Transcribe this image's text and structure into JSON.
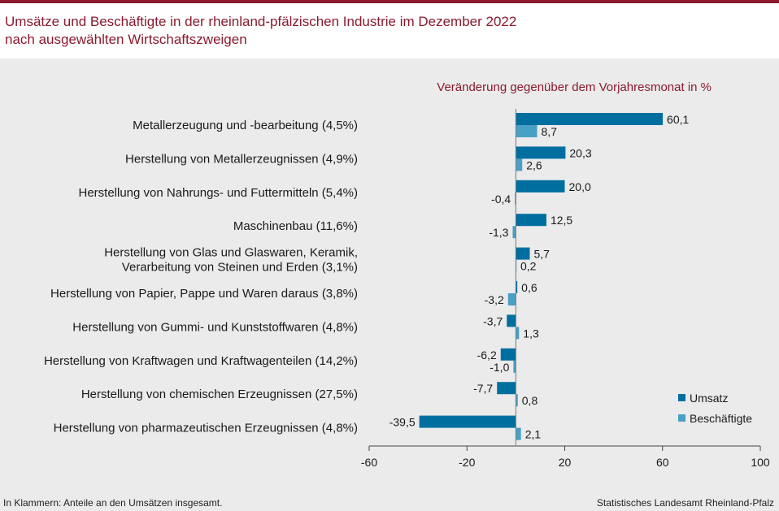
{
  "title": {
    "line1": "Umsätze und Beschäftigte in der rheinland-pfälzischen Industrie im Dezember 2022",
    "line2": "nach ausgewählten Wirtschaftszweigen"
  },
  "footnote": "In Klammern: Anteile an den Umsätzen insgesamt.",
  "source": "Statistisches Landesamt Rheinland-Pfalz",
  "colors": {
    "umsatz": "#006fa0",
    "beschaeftigte": "#4a9fc5",
    "title": "#8b1a2e"
  },
  "chart_data": {
    "type": "bar",
    "orientation": "horizontal",
    "subtitle": "Veränderung gegenüber dem Vorjahresmonat in %",
    "categories": [
      [
        "Metallerzeugung und -bearbeitung (4,5%)"
      ],
      [
        "Herstellung von Metallerzeugnissen (4,9%)"
      ],
      [
        "Herstellung von Nahrungs- und Futtermitteln (5,4%)"
      ],
      [
        "Maschinenbau (11,6%)"
      ],
      [
        "Herstellung von Glas und Glaswaren, Keramik,",
        "Verarbeitung von Steinen und Erden (3,1%)"
      ],
      [
        "Herstellung von Papier, Pappe und Waren daraus (3,8%)"
      ],
      [
        "Herstellung von Gummi- und Kunststoffwaren (4,8%)"
      ],
      [
        "Herstellung von Kraftwagen und Kraftwagenteilen (14,2%)"
      ],
      [
        "Herstellung von chemischen Erzeugnissen (27,5%)"
      ],
      [
        "Herstellung von pharmazeutischen Erzeugnissen (4,8%)"
      ]
    ],
    "series": [
      {
        "name": "Umsatz",
        "values": [
          60.1,
          20.3,
          20.0,
          12.5,
          5.7,
          0.6,
          -3.7,
          -6.2,
          -7.7,
          -39.5
        ],
        "labels": [
          "60,1",
          "20,3",
          "20,0",
          "12,5",
          "5,7",
          "0,6",
          "-3,7",
          "-6,2",
          "-7,7",
          "-39,5"
        ]
      },
      {
        "name": "Beschäftigte",
        "values": [
          8.7,
          2.6,
          -0.4,
          -1.3,
          0.2,
          -3.2,
          1.3,
          -1.0,
          0.8,
          2.1
        ],
        "labels": [
          "8,7",
          "2,6",
          "-0,4",
          "-1,3",
          "0,2",
          "-3,2",
          "1,3",
          "-1,0",
          "0,8",
          "2,1"
        ]
      }
    ],
    "xlim": [
      -60,
      100
    ],
    "xticks": [
      -60,
      -20,
      20,
      60,
      100
    ],
    "xtick_labels": [
      "-60",
      "-20",
      "20",
      "60",
      "100"
    ],
    "legend": [
      "Umsatz",
      "Beschäftigte"
    ],
    "legend_position": "bottom-right"
  }
}
